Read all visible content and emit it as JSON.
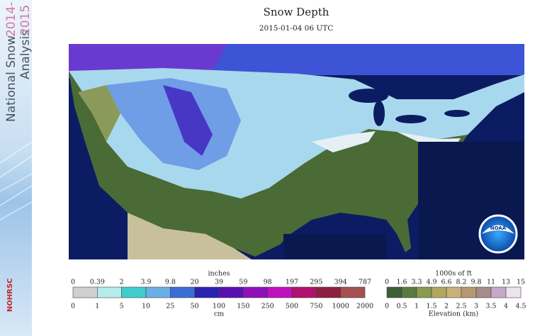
{
  "header": {
    "title": "Snow Depth",
    "timestamp": "2015-01-04 06 UTC"
  },
  "sidebar": {
    "line1": "National Snow",
    "line2": "Analysis",
    "year1": "2014-",
    "year2": "2015",
    "logo": "NOHRSC"
  },
  "map": {
    "logo": "NOAA"
  },
  "legend_depth": {
    "unit_top": "inches",
    "unit_bottom": "cm",
    "top_labels": [
      0,
      0.39,
      2,
      3.9,
      9.8,
      20,
      39,
      59,
      98,
      197,
      295,
      394,
      787
    ],
    "bottom_labels": [
      0,
      1,
      5,
      10,
      25,
      50,
      100,
      150,
      250,
      500,
      750,
      1000,
      2000
    ],
    "colors": [
      "#cfcfcf",
      "#b4ecec",
      "#40cccc",
      "#6aaee6",
      "#3a6ed6",
      "#2a22b0",
      "#5810b0",
      "#8e10b8",
      "#c010c0",
      "#b0106e",
      "#8c2040",
      "#a45050"
    ]
  },
  "legend_elevation": {
    "unit_top": "1000s of ft",
    "unit_bottom": "Elevation (km)",
    "top_labels": [
      0,
      1.6,
      3.3,
      4.9,
      6.6,
      8.2,
      9.8,
      11,
      13,
      15
    ],
    "bottom_labels": [
      0,
      0.5,
      1,
      1.5,
      2,
      2.5,
      3,
      3.5,
      4,
      4.5
    ],
    "colors": [
      "#3e5e36",
      "#5a7a40",
      "#8a9a50",
      "#b0a860",
      "#c8b078",
      "#b89870",
      "#a88a8a",
      "#c8a8c8",
      "#ece4ec"
    ]
  }
}
